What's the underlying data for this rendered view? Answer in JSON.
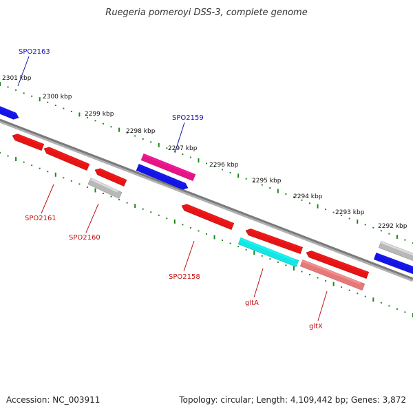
{
  "title": "Ruegeria pomeroyi DSS-3, complete genome",
  "colors": {
    "backbone": "#808080",
    "tick": "#1a8a1a",
    "label_forward": "#1010b0",
    "label_reverse": "#c01010"
  },
  "ticks": [
    {
      "label": "2301 kbp"
    },
    {
      "label": "2300 kbp"
    },
    {
      "label": "2299 kbp"
    },
    {
      "label": "2298 kbp"
    },
    {
      "label": "2297 kbp"
    },
    {
      "label": "2296 kbp"
    },
    {
      "label": "2295 kbp"
    },
    {
      "label": "2294 kbp"
    },
    {
      "label": "2293 kbp"
    },
    {
      "label": "2292 kbp"
    }
  ],
  "genes": [
    {
      "name": "",
      "color": "#1414e6"
    },
    {
      "name": "",
      "color": "#e61414"
    },
    {
      "name": "",
      "color": "#e61414"
    },
    {
      "name": "",
      "color": "#e61414"
    },
    {
      "name": "",
      "color": "#b8b8b8"
    },
    {
      "name": "",
      "color": "#e61484"
    },
    {
      "name": "",
      "color": "#1414e6"
    },
    {
      "name": "",
      "color": "#e61414"
    },
    {
      "name": "",
      "color": "#e61414"
    },
    {
      "name": "",
      "color": "#14e6e6"
    },
    {
      "name": "",
      "color": "#e61414"
    },
    {
      "name": "",
      "color": "#e67878"
    },
    {
      "name": "",
      "color": "#b8b8b8"
    },
    {
      "name": "",
      "color": "#1414e6"
    }
  ],
  "labels": [
    {
      "text": "SPO2163",
      "strand": "forward"
    },
    {
      "text": "SPO2159",
      "strand": "forward"
    },
    {
      "text": "SPO2161",
      "strand": "reverse"
    },
    {
      "text": "SPO2160",
      "strand": "reverse"
    },
    {
      "text": "SPO2158",
      "strand": "reverse"
    },
    {
      "text": "gltA",
      "strand": "reverse"
    },
    {
      "text": "gltX",
      "strand": "reverse"
    }
  ],
  "footer": {
    "accession": "Accession: NC_003911",
    "summary": "Topology: circular; Length: 4,109,442 bp; Genes: 3,872"
  }
}
